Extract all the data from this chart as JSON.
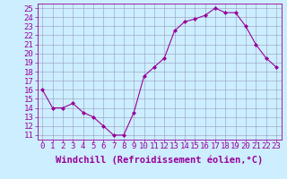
{
  "x": [
    0,
    1,
    2,
    3,
    4,
    5,
    6,
    7,
    8,
    9,
    10,
    11,
    12,
    13,
    14,
    15,
    16,
    17,
    18,
    19,
    20,
    21,
    22,
    23
  ],
  "y": [
    16,
    14,
    14,
    14.5,
    13.5,
    13,
    12,
    11,
    11,
    13.5,
    17.5,
    18.5,
    19.5,
    22.5,
    23.5,
    23.8,
    24.2,
    25,
    24.5,
    24.5,
    23,
    21,
    19.5,
    18.5
  ],
  "line_color": "#990099",
  "marker": "D",
  "marker_size": 2,
  "bg_color": "#cceeff",
  "grid_color": "#9999bb",
  "xlabel": "Windchill (Refroidissement éolien,°C)",
  "xlabel_color": "#990099",
  "ylim": [
    10.5,
    25.5
  ],
  "xlim": [
    -0.5,
    23.5
  ],
  "yticks": [
    11,
    12,
    13,
    14,
    15,
    16,
    17,
    18,
    19,
    20,
    21,
    22,
    23,
    24,
    25
  ],
  "xtick_labels": [
    "0",
    "1",
    "2",
    "3",
    "4",
    "5",
    "6",
    "7",
    "8",
    "9",
    "10",
    "11",
    "12",
    "13",
    "14",
    "15",
    "16",
    "17",
    "18",
    "19",
    "20",
    "21",
    "22",
    "23"
  ],
  "tick_color": "#990099",
  "font_size": 6.5,
  "xlabel_font_size": 7.5
}
